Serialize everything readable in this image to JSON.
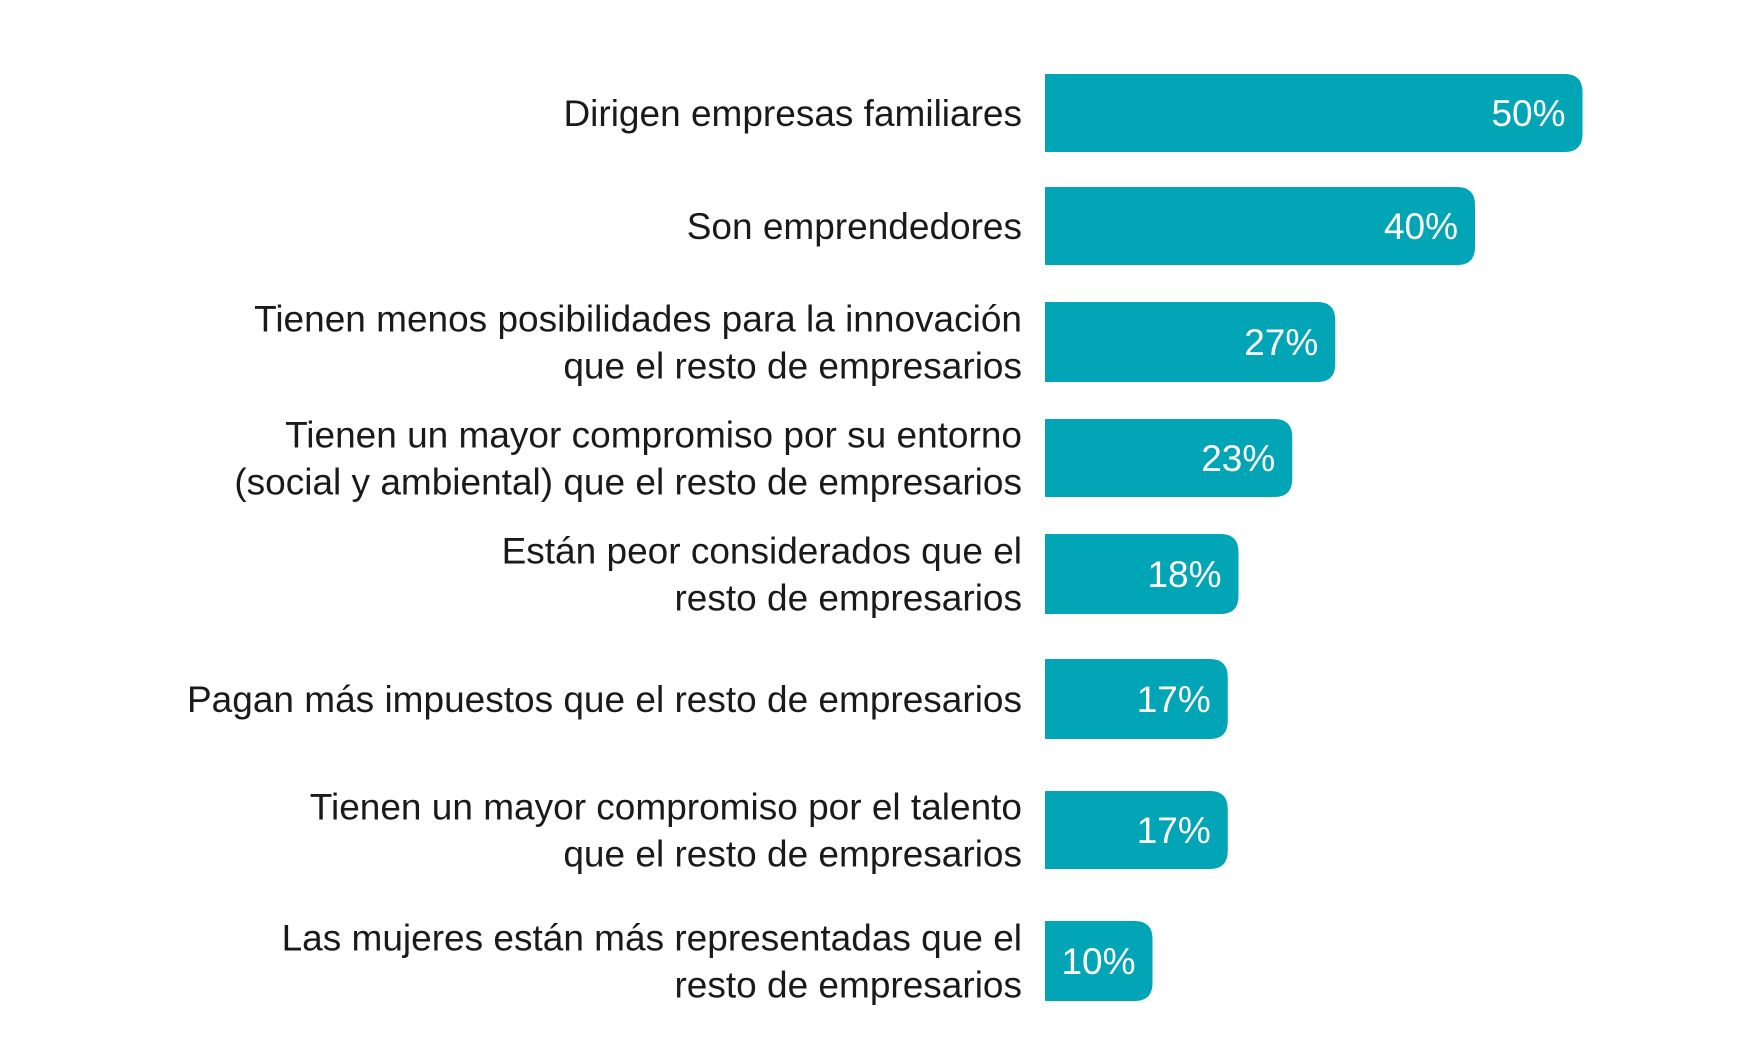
{
  "chart_data": {
    "type": "bar",
    "orientation": "horizontal",
    "title": "",
    "xlabel": "",
    "ylabel": "",
    "xlim": [
      0,
      50
    ],
    "grid": false,
    "legend": "none",
    "bar_color": "#02a5b5",
    "categories": [
      [
        "Dirigen empresas familiares"
      ],
      [
        "Son emprendedores"
      ],
      [
        "Tienen menos posibilidades para la innovación",
        "que el resto de empresarios"
      ],
      [
        "Tienen un mayor compromiso por su entorno",
        "(social y ambiental) que el resto de empresarios"
      ],
      [
        "Están peor considerados que el",
        "resto de empresarios"
      ],
      [
        "Pagan más impuestos que el resto de empresarios"
      ],
      [
        "Tienen un mayor compromiso por el talento",
        "que el resto de empresarios"
      ],
      [
        "Las mujeres están más representadas que el",
        "resto de empresarios"
      ]
    ],
    "values": [
      50,
      40,
      27,
      23,
      18,
      17,
      17,
      10
    ],
    "value_labels": [
      "50%",
      "40%",
      "27%",
      "23%",
      "18%",
      "17%",
      "17%",
      "10%"
    ]
  }
}
